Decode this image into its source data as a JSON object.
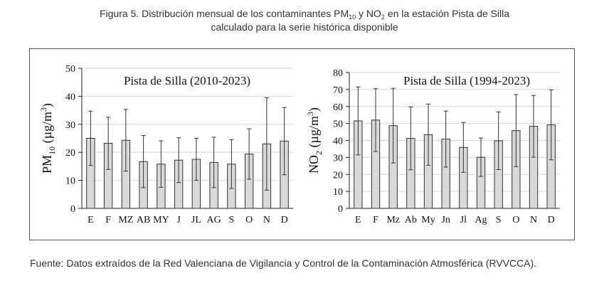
{
  "figure": {
    "caption": {
      "line1": {
        "part1": "Figura 5. Distribución mensual de los contaminantes PM",
        "sub1": "10",
        "part2": " y NO",
        "sub2": "2",
        "part3": " en la estación Pista de Silla"
      },
      "line2": "calculado para la serie histórica disponible"
    },
    "source": "Fuente: Datos extraídos de la Red Valenciana de Vigilancia y Control de la Contaminación Atmosférica (RVVCCA)."
  },
  "chart_data": [
    {
      "type": "bar",
      "title": "Pista de Silla (2010-2023)",
      "categories": [
        "E",
        "F",
        "MZ",
        "AB",
        "MY",
        "J",
        "JL",
        "AG",
        "S",
        "O",
        "N",
        "D"
      ],
      "values": [
        25,
        23.2,
        24.3,
        16.7,
        15.8,
        17.2,
        17.5,
        16.4,
        15.8,
        19.4,
        23,
        24
      ],
      "error": [
        9.7,
        9.3,
        11,
        9.3,
        8.3,
        8,
        7.5,
        9,
        8.7,
        9,
        16.5,
        12
      ],
      "ylabel": {
        "main": "PM",
        "sub": "10",
        "unit_open": " (µg/m",
        "sup": "3",
        "unit_close": ")"
      },
      "ylim": [
        0,
        50
      ],
      "yticks": [
        0,
        10,
        20,
        30,
        40,
        50
      ],
      "grid": true,
      "bar_color": "#d9d9d9"
    },
    {
      "type": "bar",
      "title": "Pista de Silla (1994-2023)",
      "categories": [
        "E",
        "F",
        "Mz",
        "Ab",
        "My",
        "Jn",
        "Jl",
        "Ag",
        "S",
        "O",
        "N",
        "D"
      ],
      "values": [
        51.5,
        52,
        48.7,
        41.2,
        43.4,
        40.8,
        35.9,
        30.1,
        39.8,
        45.8,
        48.3,
        49.2
      ],
      "error": [
        20,
        18.5,
        22,
        18.5,
        18,
        16.5,
        14.7,
        11.3,
        17,
        21.2,
        18.2,
        20.6
      ],
      "ylabel": {
        "main": "NO",
        "sub": "2",
        "unit_open": " (µg/m",
        "sup": "3",
        "unit_close": ")"
      },
      "ylim": [
        0,
        80
      ],
      "yticks": [
        0,
        10,
        20,
        30,
        40,
        50,
        60,
        70,
        80
      ],
      "grid": true,
      "bar_color": "#d9d9d9"
    }
  ]
}
